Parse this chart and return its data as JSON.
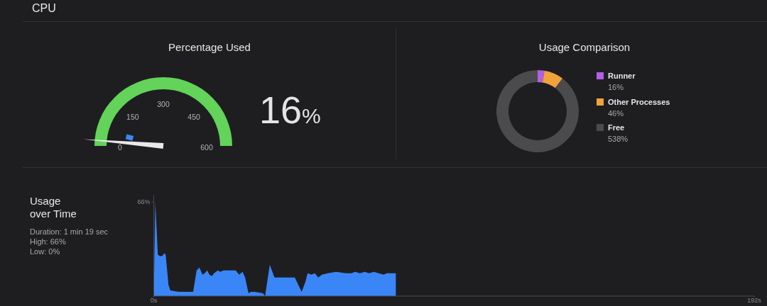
{
  "chart_data": [
    {
      "type": "other",
      "title": "CPU"
    },
    {
      "type": "other",
      "title": "Percentage Used",
      "annotations": [
        "0",
        "150",
        "300",
        "450",
        "600",
        "16%"
      ]
    },
    {
      "type": "donut",
      "title": "Usage Comparison",
      "categories": [
        "Runner",
        "Other Processes",
        "Free"
      ],
      "values": [
        16,
        46,
        538
      ],
      "colors": [
        "#b35ee8",
        "#f2a23a",
        "#4b4b4e"
      ],
      "value_labels": [
        "16%",
        "46%",
        "538%"
      ],
      "legend": "right"
    },
    {
      "type": "area",
      "title": "Usage over Time",
      "annotations": [
        "Duration: 1 min 19 sec",
        "High: 66%",
        "Low: 0%"
      ],
      "color": "#3a86f7",
      "x": [
        0,
        0.5,
        1.3,
        1.9,
        2.7,
        3.4,
        3.8,
        4.2,
        4.7,
        5.3,
        8,
        12.1,
        12.6,
        13.7,
        14.6,
        15.6,
        16.3,
        17.1,
        17.8,
        18.6,
        19.3,
        20.5,
        21.2,
        22.4,
        24.6,
        26.2,
        27.3,
        28.4,
        29.2,
        30.3,
        31.1,
        32.2,
        34.9,
        35.6,
        37.1,
        38.6,
        40.1,
        43.9,
        45.1,
        47.3,
        48.5,
        49.2,
        50.4,
        51.5,
        52.6,
        53.8,
        55.7,
        58.3,
        61.4,
        63.2,
        64.4,
        65.9,
        67.4,
        68.9,
        70.4,
        71.9,
        73.5,
        74.6,
        77.4
      ],
      "values": [
        0,
        66,
        29,
        28,
        28,
        30,
        29,
        20,
        8,
        4,
        3,
        3,
        3,
        18,
        20,
        15,
        16,
        18,
        15,
        14,
        16,
        18,
        17,
        18,
        18,
        18,
        15,
        17,
        13,
        2,
        3,
        3,
        2,
        0,
        22,
        13,
        13,
        13,
        13,
        3,
        10,
        16,
        15,
        16,
        13,
        15,
        16,
        17,
        16,
        16,
        17,
        16,
        17,
        16,
        17,
        16,
        15,
        16,
        16
      ],
      "xlim": [
        0,
        192
      ],
      "xticks": [
        {
          "value": 0,
          "label": "0s"
        },
        {
          "value": 192,
          "label": "192s"
        }
      ],
      "ylim": [
        0,
        71
      ],
      "yticks": [
        {
          "value": 66,
          "label": "66%"
        }
      ]
    }
  ]
}
